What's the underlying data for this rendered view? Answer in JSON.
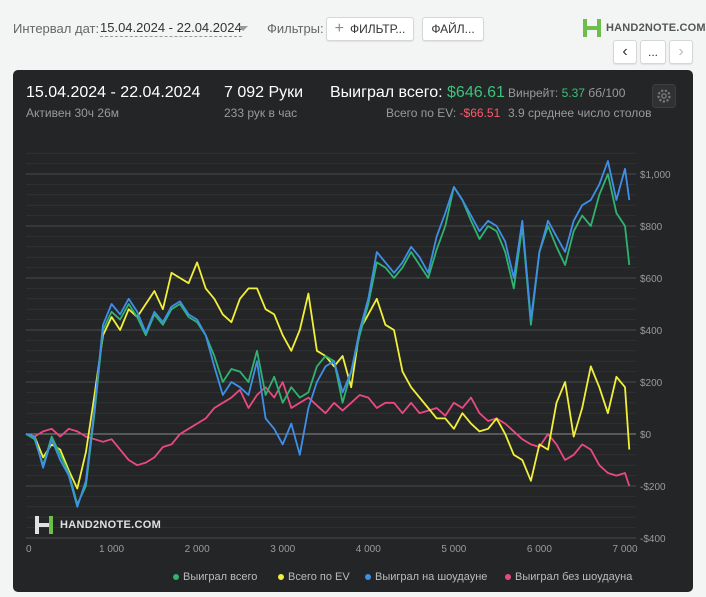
{
  "toolbar": {
    "interval_label": "Интервал дат:",
    "date_range": "15.04.2024 - 22.04.2024",
    "filters_label": "Фильтры:",
    "filter_button": "ФИЛЬТР...",
    "file_button": "ФАЙЛ...",
    "brand": "HAND2NOTE.COM",
    "more_button": "..."
  },
  "stats": {
    "period": "15.04.2024 - 22.04.2024",
    "active": "Активен 30ч 26м",
    "hands": "7 092 Руки",
    "hands_per_hour": "233 рук в час",
    "won_label": "Выиграл всего:",
    "won_value": "$646.61",
    "ev_label": "Всего по EV:",
    "ev_value": "-$66.51",
    "winrate_label": "Винрейт:",
    "winrate_value": "5.37",
    "winrate_unit": "бб/100",
    "avg_table": "3.9 среднее число столов"
  },
  "watermark": "HAND2NOTE.COM",
  "colors": {
    "won": "#2fb36f",
    "ev": "#f2ef3a",
    "showdown": "#3f8fe8",
    "nonshowdown": "#e84a7f"
  },
  "chart_data": {
    "type": "line",
    "xlim": [
      0,
      7100
    ],
    "ylim": [
      -400,
      1100
    ],
    "x_ticks": [
      {
        "value": 0,
        "label": "0"
      },
      {
        "value": 1000,
        "label": "1 000"
      },
      {
        "value": 2000,
        "label": "2 000"
      },
      {
        "value": 3000,
        "label": "3 000"
      },
      {
        "value": 4000,
        "label": "4 000"
      },
      {
        "value": 5000,
        "label": "5 000"
      },
      {
        "value": 6000,
        "label": "6 000"
      },
      {
        "value": 7000,
        "label": "7 000"
      }
    ],
    "y_ticks": [
      {
        "value": 1000,
        "label": "$1,000"
      },
      {
        "value": 800,
        "label": "$800"
      },
      {
        "value": 600,
        "label": "$600"
      },
      {
        "value": 400,
        "label": "$400"
      },
      {
        "value": 200,
        "label": "$200"
      },
      {
        "value": 0,
        "label": "$0"
      },
      {
        "value": -200,
        "label": "-$200"
      },
      {
        "value": -400,
        "label": "-$400"
      }
    ],
    "legend_position": "bottom",
    "series": [
      {
        "name": "Выиграл всего",
        "color": "#2fb36f",
        "x": [
          0,
          100,
          200,
          300,
          400,
          500,
          600,
          700,
          800,
          900,
          1000,
          1100,
          1200,
          1300,
          1400,
          1500,
          1600,
          1700,
          1800,
          1900,
          2000,
          2100,
          2200,
          2300,
          2400,
          2500,
          2600,
          2700,
          2800,
          2900,
          3000,
          3100,
          3200,
          3300,
          3400,
          3500,
          3600,
          3700,
          3800,
          3900,
          4000,
          4100,
          4200,
          4300,
          4400,
          4500,
          4600,
          4700,
          4800,
          4900,
          5000,
          5100,
          5200,
          5300,
          5400,
          5500,
          5600,
          5700,
          5800,
          5900,
          6000,
          6100,
          6200,
          6300,
          6400,
          6500,
          6600,
          6700,
          6800,
          6900,
          7000,
          7050
        ],
        "y": [
          0,
          -20,
          -120,
          -10,
          -80,
          -150,
          -270,
          -200,
          80,
          400,
          470,
          440,
          500,
          450,
          380,
          460,
          420,
          480,
          500,
          450,
          430,
          380,
          300,
          200,
          250,
          240,
          200,
          320,
          150,
          220,
          120,
          180,
          140,
          160,
          260,
          300,
          280,
          120,
          240,
          380,
          500,
          660,
          640,
          600,
          640,
          700,
          650,
          600,
          710,
          800,
          950,
          900,
          820,
          750,
          800,
          780,
          700,
          560,
          800,
          420,
          700,
          800,
          720,
          650,
          780,
          840,
          800,
          920,
          1000,
          850,
          800,
          650
        ]
      },
      {
        "name": "Всего по EV",
        "color": "#f2ef3a",
        "x": [
          0,
          100,
          200,
          300,
          400,
          500,
          600,
          700,
          800,
          900,
          1000,
          1100,
          1200,
          1300,
          1400,
          1500,
          1600,
          1700,
          1800,
          1900,
          2000,
          2100,
          2200,
          2300,
          2400,
          2500,
          2600,
          2700,
          2800,
          2900,
          3000,
          3100,
          3200,
          3300,
          3400,
          3500,
          3600,
          3700,
          3800,
          3900,
          4000,
          4100,
          4200,
          4300,
          4400,
          4500,
          4600,
          4700,
          4800,
          4900,
          5000,
          5100,
          5200,
          5300,
          5400,
          5500,
          5600,
          5700,
          5800,
          5900,
          6000,
          6100,
          6200,
          6300,
          6400,
          6500,
          6600,
          6700,
          6800,
          6900,
          7000,
          7050
        ],
        "y": [
          0,
          -10,
          -90,
          -40,
          -60,
          -140,
          -210,
          -70,
          150,
          380,
          450,
          400,
          480,
          450,
          500,
          550,
          480,
          620,
          600,
          580,
          660,
          560,
          520,
          460,
          430,
          520,
          560,
          560,
          480,
          460,
          380,
          320,
          400,
          540,
          320,
          300,
          260,
          300,
          180,
          400,
          460,
          520,
          420,
          400,
          240,
          180,
          140,
          100,
          60,
          60,
          20,
          80,
          40,
          10,
          20,
          60,
          0,
          -80,
          -100,
          -180,
          -40,
          -60,
          120,
          200,
          -10,
          100,
          260,
          180,
          80,
          220,
          180,
          -60
        ]
      },
      {
        "name": "Выиграл на шоудауне",
        "color": "#3f8fe8",
        "x": [
          0,
          100,
          200,
          300,
          400,
          500,
          600,
          700,
          800,
          900,
          1000,
          1100,
          1200,
          1300,
          1400,
          1500,
          1600,
          1700,
          1800,
          1900,
          2000,
          2100,
          2200,
          2300,
          2400,
          2500,
          2600,
          2700,
          2800,
          2900,
          3000,
          3100,
          3200,
          3300,
          3400,
          3500,
          3600,
          3700,
          3800,
          3900,
          4000,
          4100,
          4200,
          4300,
          4400,
          4500,
          4600,
          4700,
          4800,
          4900,
          5000,
          5100,
          5200,
          5300,
          5400,
          5500,
          5600,
          5700,
          5800,
          5900,
          6000,
          6100,
          6200,
          6300,
          6400,
          6500,
          6600,
          6700,
          6800,
          6900,
          7000,
          7050
        ],
        "y": [
          0,
          -10,
          -130,
          -20,
          -100,
          -160,
          -280,
          -180,
          100,
          420,
          500,
          460,
          520,
          470,
          390,
          470,
          430,
          490,
          510,
          460,
          440,
          380,
          260,
          150,
          200,
          180,
          150,
          280,
          60,
          20,
          -40,
          40,
          -80,
          100,
          200,
          260,
          280,
          160,
          240,
          400,
          520,
          700,
          660,
          620,
          660,
          720,
          680,
          620,
          760,
          850,
          950,
          900,
          840,
          780,
          820,
          800,
          740,
          600,
          820,
          440,
          700,
          820,
          760,
          700,
          820,
          880,
          900,
          960,
          1050,
          900,
          1020,
          900
        ]
      },
      {
        "name": "Выиграл без шоудауна",
        "color": "#e84a7f",
        "x": [
          0,
          100,
          200,
          300,
          400,
          500,
          600,
          700,
          800,
          900,
          1000,
          1100,
          1200,
          1300,
          1400,
          1500,
          1600,
          1700,
          1800,
          1900,
          2000,
          2100,
          2200,
          2300,
          2400,
          2500,
          2600,
          2700,
          2800,
          2900,
          3000,
          3100,
          3200,
          3300,
          3400,
          3500,
          3600,
          3700,
          3800,
          3900,
          4000,
          4100,
          4200,
          4300,
          4400,
          4500,
          4600,
          4700,
          4800,
          4900,
          5000,
          5100,
          5200,
          5300,
          5400,
          5500,
          5600,
          5700,
          5800,
          5900,
          6000,
          6100,
          6200,
          6300,
          6400,
          6500,
          6600,
          6700,
          6800,
          6900,
          7000,
          7050
        ],
        "y": [
          0,
          -10,
          10,
          20,
          -10,
          20,
          10,
          -10,
          -20,
          -30,
          -20,
          -60,
          -100,
          -120,
          -110,
          -90,
          -50,
          -40,
          0,
          20,
          40,
          60,
          100,
          120,
          140,
          170,
          100,
          150,
          180,
          140,
          200,
          100,
          120,
          140,
          110,
          80,
          120,
          90,
          120,
          150,
          140,
          100,
          120,
          120,
          80,
          120,
          80,
          90,
          100,
          70,
          120,
          100,
          140,
          80,
          50,
          60,
          40,
          10,
          -20,
          -40,
          -50,
          0,
          -40,
          -100,
          -80,
          -40,
          -60,
          -120,
          -150,
          -160,
          -150,
          -200
        ]
      }
    ]
  }
}
